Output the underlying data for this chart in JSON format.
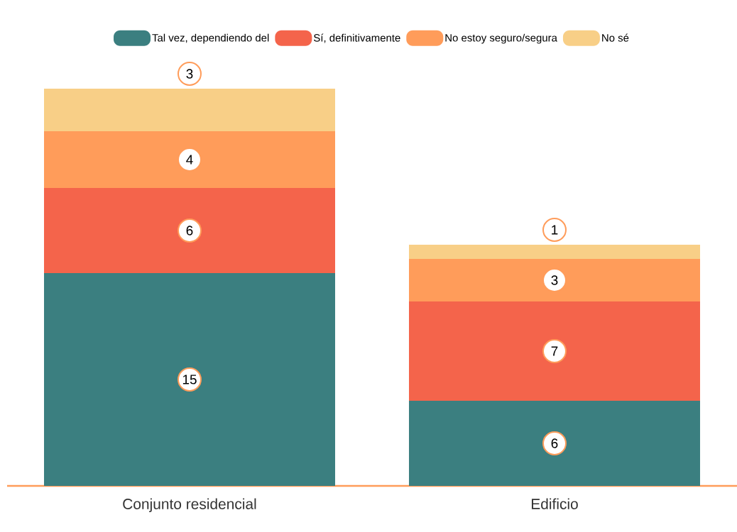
{
  "chart_data": {
    "type": "bar",
    "stacked": true,
    "data_labels": true,
    "legend": "top",
    "categories": [
      "Conjunto residencial",
      "Edificio"
    ],
    "series": [
      {
        "name": "Tal vez, dependiendo del",
        "color": "#3b7f80",
        "values": [
          15,
          6
        ]
      },
      {
        "name": "Sí, definitivamente",
        "color": "#f4644b",
        "values": [
          6,
          7
        ]
      },
      {
        "name": "No estoy seguro/segura",
        "color": "#ff9c5a",
        "values": [
          4,
          3
        ]
      },
      {
        "name": "No sé",
        "color": "#f8cf87",
        "values": [
          3,
          1
        ]
      }
    ]
  }
}
